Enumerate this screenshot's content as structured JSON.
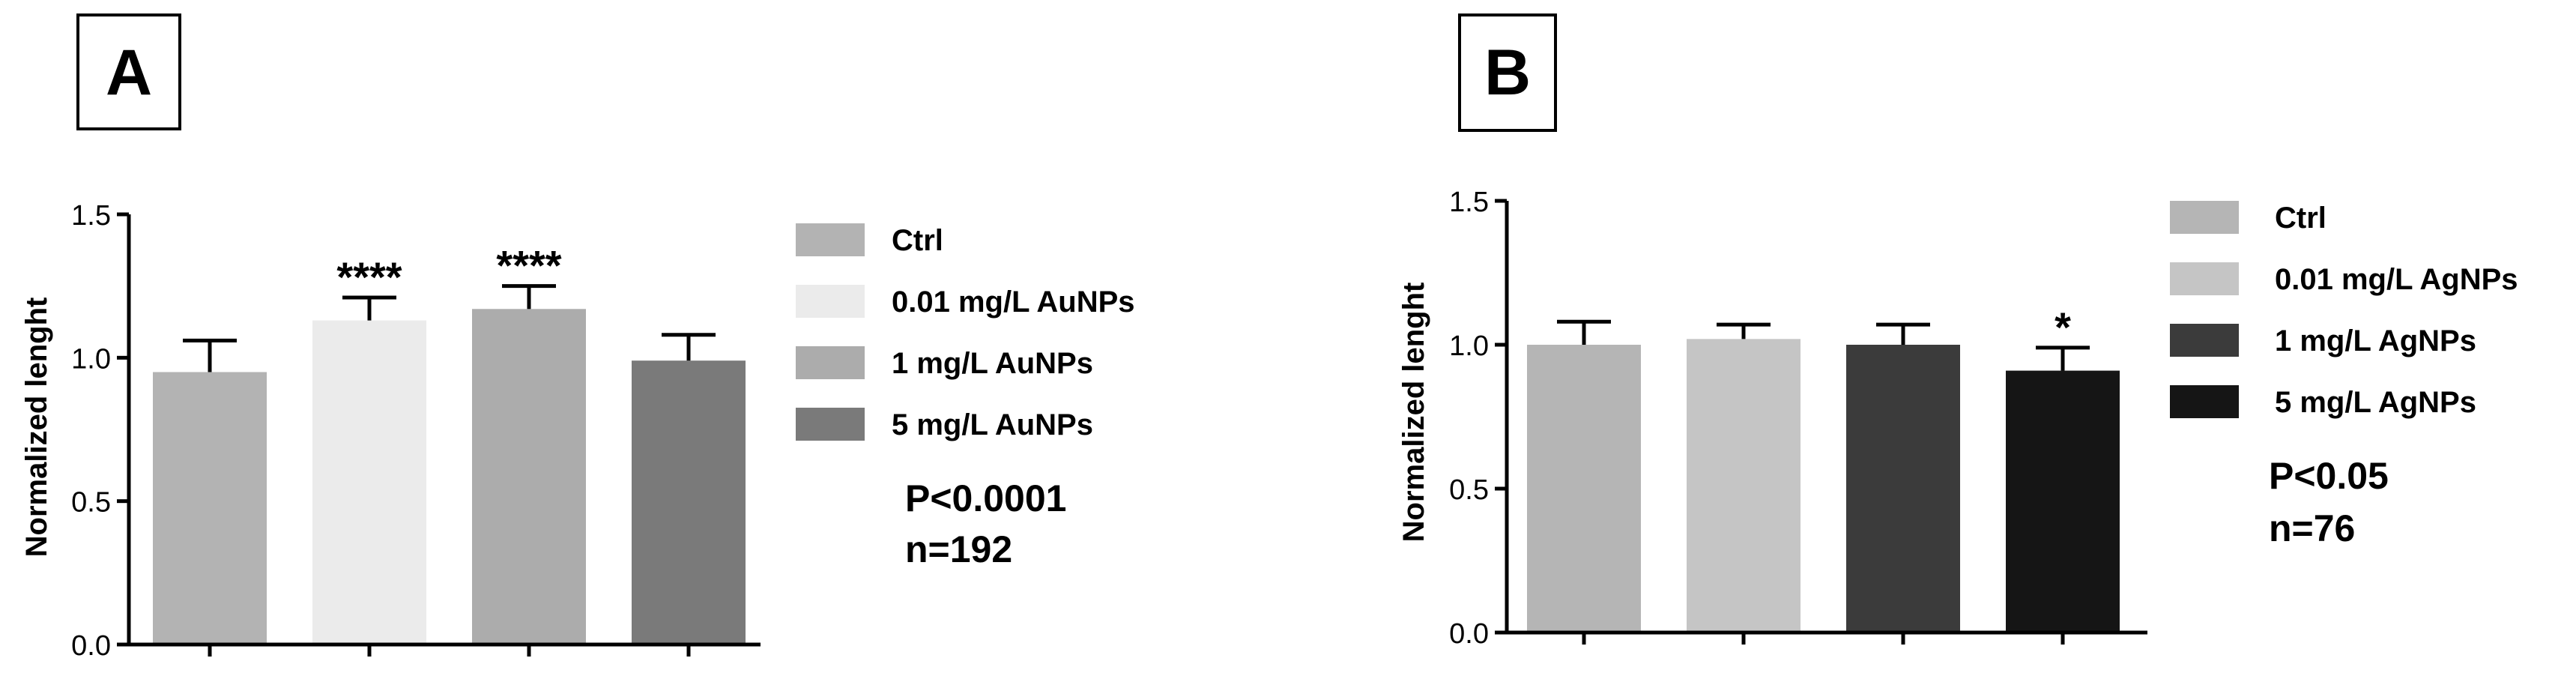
{
  "chart_data": [
    {
      "panel_label": "A",
      "type": "bar",
      "categories": [
        "Ctrl",
        "0.01 mg/L AuNPs",
        "1 mg/L AuNPs",
        "5 mg/L AuNPs"
      ],
      "values": [
        0.95,
        1.13,
        1.17,
        0.99
      ],
      "errors": [
        0.11,
        0.08,
        0.08,
        0.09
      ],
      "significance": [
        "",
        "****",
        "****",
        ""
      ],
      "colors": [
        "#b3b3b3",
        "#ebebeb",
        "#acacac",
        "#7a7a7a"
      ],
      "ylabel": "Normalized lenght",
      "xlabel": "",
      "ylim": [
        0,
        1.5
      ],
      "yticks": [
        0.0,
        0.5,
        1.0,
        1.5
      ],
      "ytick_labels": [
        "0.0",
        "0.5",
        "1.0",
        "1.5"
      ],
      "legend": [
        "Ctrl",
        "0.01 mg/L AuNPs",
        "1 mg/L AuNPs",
        "5 mg/L AuNPs"
      ],
      "legend_position": "right",
      "annotation": [
        "P<0.0001",
        "n=192"
      ],
      "grid": false
    },
    {
      "panel_label": "B",
      "type": "bar",
      "categories": [
        "Ctrl",
        "0.01 mg/L AgNPs",
        "1 mg/L AgNPs",
        "5 mg/L AgNPs"
      ],
      "values": [
        1.0,
        1.02,
        1.0,
        0.91
      ],
      "errors": [
        0.08,
        0.05,
        0.07,
        0.08
      ],
      "significance": [
        "",
        "",
        "",
        "*"
      ],
      "colors": [
        "#b5b5b5",
        "#c5c5c5",
        "#3b3b3b",
        "#151515"
      ],
      "ylabel": "Normalized lenght",
      "xlabel": "",
      "ylim": [
        0,
        1.5
      ],
      "yticks": [
        0.0,
        0.5,
        1.0,
        1.5
      ],
      "ytick_labels": [
        "0.0",
        "0.5",
        "1.0",
        "1.5"
      ],
      "legend": [
        "Ctrl",
        "0.01 mg/L AgNPs",
        "1 mg/L AgNPs",
        "5 mg/L AgNPs"
      ],
      "legend_position": "right",
      "annotation": [
        "P<0.05",
        "n=76"
      ],
      "grid": false
    }
  ]
}
